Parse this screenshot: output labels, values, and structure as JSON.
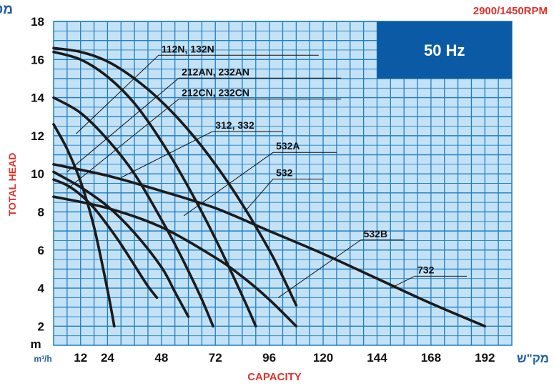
{
  "header": {
    "unit_hebrew_meter": "מטר",
    "rpm": "2900/1450RPM",
    "hz_box": "50 Hz"
  },
  "axes": {
    "y_title": "TOTAL HEAD",
    "y_unit": "m",
    "x_unit_left": "m³/h",
    "x_title": "CAPACITY",
    "x_unit_hebrew": "מק\"ש"
  },
  "colors": {
    "grid_fill": "#c4e2f6",
    "grid_line": "#1f7fc6",
    "accent_red": "#e1332c",
    "hz_box": "#0a5aa6",
    "curve": "#1b1b1b"
  },
  "chart_data": {
    "type": "line",
    "xlim": [
      0,
      204
    ],
    "ylim": [
      1,
      18
    ],
    "x_ticks": [
      12,
      24,
      48,
      72,
      96,
      120,
      144,
      168,
      192
    ],
    "y_ticks": [
      2,
      4,
      6,
      8,
      10,
      12,
      14,
      16,
      18
    ],
    "grid": true,
    "series": [
      {
        "name": "112N, 132N",
        "x": [
          0,
          6,
          12,
          18,
          24,
          27
        ],
        "y": [
          12.6,
          11.3,
          9.6,
          7.2,
          3.9,
          2.0
        ]
      },
      {
        "name": "212AN, 232AN",
        "x": [
          0,
          6,
          12,
          18,
          24,
          30,
          36,
          42,
          46
        ],
        "y": [
          9.7,
          9.4,
          8.9,
          8.2,
          7.3,
          6.3,
          5.2,
          4.1,
          3.5
        ]
      },
      {
        "name": "212CN, 232CN",
        "x": [
          0,
          12,
          24,
          36,
          48,
          54,
          60
        ],
        "y": [
          10.1,
          9.3,
          8.3,
          6.9,
          5.1,
          3.8,
          2.5
        ]
      },
      {
        "name": "312, 332",
        "x": [
          0,
          12,
          24,
          36,
          48,
          54,
          60,
          66,
          71
        ],
        "y": [
          14.0,
          13.2,
          11.8,
          10.0,
          7.6,
          6.3,
          4.9,
          3.4,
          2.0
        ]
      },
      {
        "name": "532A",
        "x": [
          0,
          12,
          24,
          36,
          48,
          60,
          72,
          84,
          90
        ],
        "y": [
          16.4,
          16.0,
          15.1,
          13.7,
          11.7,
          9.3,
          6.6,
          3.6,
          2.0
        ]
      },
      {
        "name": "532",
        "x": [
          0,
          12,
          24,
          36,
          48,
          60,
          72,
          84,
          96,
          102,
          108
        ],
        "y": [
          16.6,
          16.4,
          15.9,
          15.0,
          13.8,
          12.3,
          10.5,
          8.4,
          6.0,
          4.6,
          3.1
        ]
      },
      {
        "name": "532B",
        "x": [
          0,
          24,
          48,
          72,
          84,
          96,
          108
        ],
        "y": [
          8.8,
          8.2,
          7.2,
          5.6,
          4.6,
          3.4,
          2.0
        ]
      },
      {
        "name": "732",
        "x": [
          0,
          24,
          48,
          72,
          96,
          120,
          144,
          168,
          192
        ],
        "y": [
          10.5,
          9.9,
          9.1,
          8.2,
          7.0,
          5.8,
          4.5,
          3.2,
          2.0
        ]
      }
    ],
    "annotations": [
      "112N, 132N",
      "212AN, 232AN",
      "212CN, 232CN",
      "312, 332",
      "532A",
      "532",
      "532B",
      "732"
    ]
  }
}
